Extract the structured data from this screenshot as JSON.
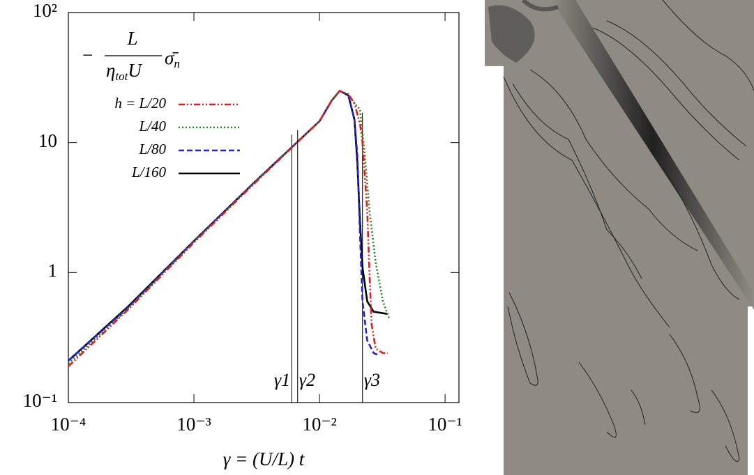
{
  "chart_data": {
    "type": "line",
    "xscale": "log",
    "yscale": "log",
    "xlabel": "γ = (U/L) t",
    "ylabel": {
      "sign": "−",
      "numerator": "L",
      "denominator": "η",
      "denominator_sub": "tot",
      "denominator_tail": "U",
      "symbol": "σ̄",
      "symbol_sub": "n"
    },
    "xlim": [
      0.0001,
      0.129
    ],
    "ylim": [
      0.1,
      100
    ],
    "xticks": [
      {
        "value": 0.0001,
        "label": "10⁻⁴"
      },
      {
        "value": 0.001,
        "label": "10⁻³"
      },
      {
        "value": 0.01,
        "label": "10⁻²"
      },
      {
        "value": 0.1,
        "label": "10⁻¹"
      }
    ],
    "yticks": [
      {
        "value": 0.1,
        "label": "10⁻¹"
      },
      1,
      10,
      {
        "value": 100,
        "label": "10²"
      }
    ],
    "legend": "upper left",
    "series": [
      {
        "name": "h = L/20",
        "color": "#e41a1c",
        "dash": "dashdotdot",
        "x": [
          0.0001,
          0.0003,
          0.001,
          0.003,
          0.01,
          0.0125,
          0.0145,
          0.017,
          0.019,
          0.021,
          0.022,
          0.024,
          0.025,
          0.026,
          0.028,
          0.032,
          0.035
        ],
        "values": [
          0.19,
          0.52,
          1.7,
          4.8,
          14.6,
          21,
          25,
          23.5,
          20,
          14,
          10,
          3,
          1,
          0.4,
          0.26,
          0.24,
          0.24
        ]
      },
      {
        "name": "L/40",
        "color": "#1a8a1a",
        "dash": "dotted",
        "x": [
          0.0001,
          0.0003,
          0.001,
          0.003,
          0.01,
          0.0125,
          0.0145,
          0.017,
          0.019,
          0.021,
          0.023,
          0.025,
          0.028,
          0.032,
          0.036
        ],
        "values": [
          0.2,
          0.53,
          1.72,
          4.85,
          14.6,
          21,
          25,
          23.5,
          20,
          18,
          8,
          3,
          1.2,
          0.6,
          0.44
        ]
      },
      {
        "name": "L/80",
        "color": "#1f1fe0",
        "dash": "dashed",
        "x": [
          0.0001,
          0.0003,
          0.001,
          0.003,
          0.01,
          0.0125,
          0.0145,
          0.017,
          0.019,
          0.02,
          0.021,
          0.022,
          0.024,
          0.027,
          0.03
        ],
        "values": [
          0.21,
          0.54,
          1.75,
          4.9,
          14.6,
          21,
          25,
          23,
          15,
          8,
          2,
          0.6,
          0.3,
          0.24,
          0.23
        ]
      },
      {
        "name": "L/160",
        "color": "#000000",
        "dash": "solid",
        "x": [
          0.0001,
          0.0003,
          0.001,
          0.003,
          0.01,
          0.0125,
          0.0145,
          0.017,
          0.019,
          0.02,
          0.021,
          0.022,
          0.024,
          0.027,
          0.035
        ],
        "values": [
          0.21,
          0.55,
          1.75,
          4.9,
          14.6,
          21,
          25,
          23,
          15,
          7,
          2.5,
          1.1,
          0.6,
          0.5,
          0.48
        ]
      }
    ],
    "annotations": [
      {
        "text": "γ1",
        "x": 0.006,
        "y": 11.5
      },
      {
        "text": "γ2",
        "x": 0.0067,
        "y": 12.5
      },
      {
        "text": "γ3",
        "x": 0.022,
        "y": 17
      }
    ]
  }
}
